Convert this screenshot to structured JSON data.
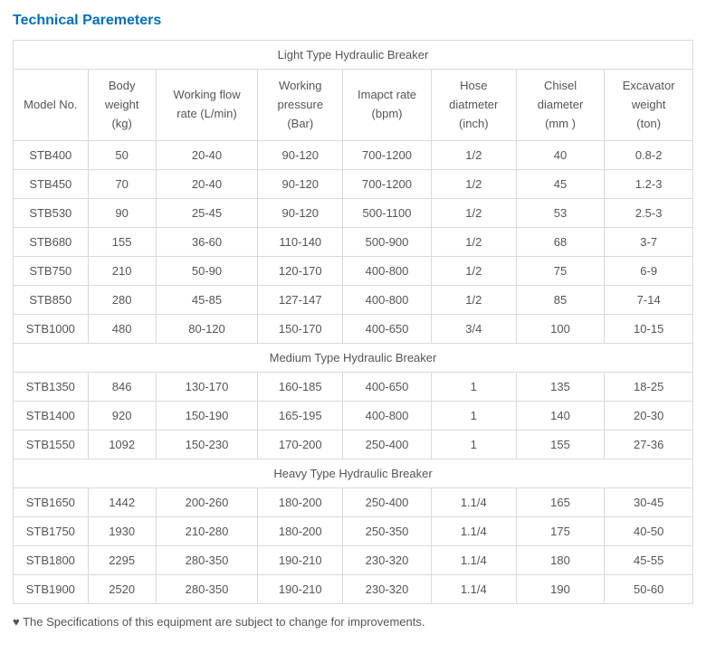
{
  "title": {
    "text": "Technical Paremeters",
    "color": "#0070c0"
  },
  "columns": [
    "Model No.",
    "Body weight (kg)",
    "Working flow rate (L/min)",
    "Working pressure (Bar)",
    "Imapct rate (bpm)",
    "Hose diatmeter (inch)",
    "Chisel diameter (mm )",
    "Excavator weight (ton)"
  ],
  "sections": [
    {
      "header": "Light Type Hydraulic Breaker",
      "rows": [
        [
          "STB400",
          "50",
          "20-40",
          "90-120",
          "700-1200",
          "1/2",
          "40",
          "0.8-2"
        ],
        [
          "STB450",
          "70",
          "20-40",
          "90-120",
          "700-1200",
          "1/2",
          "45",
          "1.2-3"
        ],
        [
          "STB530",
          "90",
          "25-45",
          "90-120",
          "500-1100",
          "1/2",
          "53",
          "2.5-3"
        ],
        [
          "STB680",
          "155",
          "36-60",
          "110-140",
          "500-900",
          "1/2",
          "68",
          "3-7"
        ],
        [
          "STB750",
          "210",
          "50-90",
          "120-170",
          "400-800",
          "1/2",
          "75",
          "6-9"
        ],
        [
          "STB850",
          "280",
          "45-85",
          "127-147",
          "400-800",
          "1/2",
          "85",
          "7-14"
        ],
        [
          "STB1000",
          "480",
          "80-120",
          "150-170",
          "400-650",
          "3/4",
          "100",
          "10-15"
        ]
      ]
    },
    {
      "header": "Medium Type Hydraulic Breaker",
      "rows": [
        [
          "STB1350",
          "846",
          "130-170",
          "160-185",
          "400-650",
          "1",
          "135",
          "18-25"
        ],
        [
          "STB1400",
          "920",
          "150-190",
          "165-195",
          "400-800",
          "1",
          "140",
          "20-30"
        ],
        [
          "STB1550",
          "1092",
          "150-230",
          "170-200",
          "250-400",
          "1",
          "155",
          "27-36"
        ]
      ]
    },
    {
      "header": "Heavy Type Hydraulic Breaker",
      "rows": [
        [
          "STB1650",
          "1442",
          "200-260",
          "180-200",
          "250-400",
          "1.1/4",
          "165",
          "30-45"
        ],
        [
          "STB1750",
          "1930",
          "210-280",
          "180-200",
          "250-350",
          "1.1/4",
          "175",
          "40-50"
        ],
        [
          "STB1800",
          "2295",
          "280-350",
          "190-210",
          "230-320",
          "1.1/4",
          "180",
          "45-55"
        ],
        [
          "STB1900",
          "2520",
          "280-350",
          "190-210",
          "230-320",
          "1.1/4",
          "190",
          "50-60"
        ]
      ]
    }
  ],
  "footnote": "♥ The Specifications of this equipment are subject to change for improvements.",
  "colors": {
    "border": "#d9d9d9",
    "text": "#555555",
    "background": "#ffffff"
  }
}
